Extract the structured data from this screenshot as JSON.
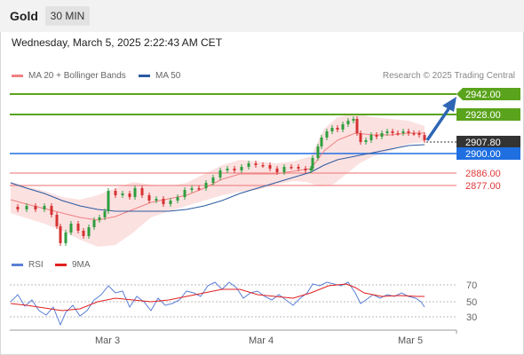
{
  "header": {
    "title": "Gold",
    "timeframe": "30 MIN"
  },
  "datetime": "Wednesday, March 5, 2025 2:22:43 AM CET",
  "legend": {
    "ma20": {
      "label": "MA 20 + Bollinger Bands",
      "color": "#f08080"
    },
    "ma50": {
      "label": "MA 50",
      "color": "#2c5aa0"
    },
    "research": "Research © 2025 Trading Central"
  },
  "levels": {
    "target2": {
      "label": "2942.00",
      "value": 2942.0,
      "color": "#5aa31c"
    },
    "target1": {
      "label": "2928.00",
      "value": 2928.0,
      "color": "#5aa31c"
    },
    "current": {
      "label": "2907.80",
      "value": 2907.8,
      "color": "#333333"
    },
    "pivot": {
      "label": "2900.00",
      "value": 2900.0,
      "color": "#1f6fe0"
    },
    "support1": {
      "label": "2886.00",
      "value": 2886.0,
      "color": "#e03a3a"
    },
    "support2": {
      "label": "2877.00",
      "value": 2877.0,
      "color": "#e03a3a"
    }
  },
  "rsi_legend": {
    "rsi": {
      "label": "RSI",
      "color": "#5b7fd6"
    },
    "ma": {
      "label": "9MA",
      "color": "#e02020"
    }
  },
  "rsi_axis": [
    "70",
    "50",
    "30"
  ],
  "x_axis": [
    "Mar 3",
    "Mar 4",
    "Mar 5"
  ]
}
